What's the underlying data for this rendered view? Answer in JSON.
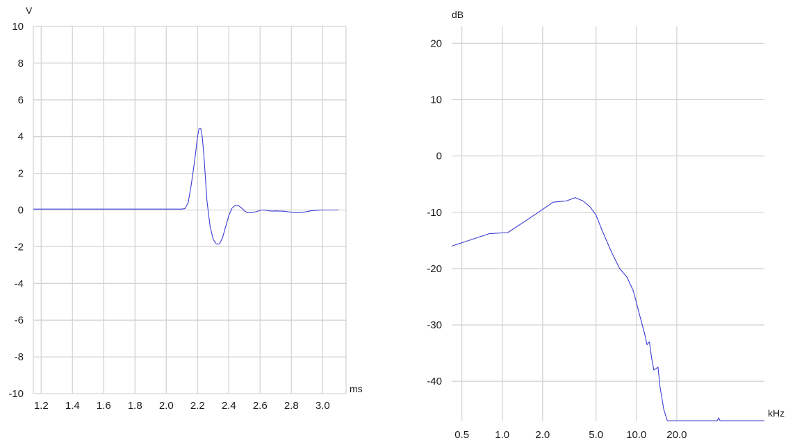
{
  "chart_data": [
    {
      "type": "line",
      "title": "",
      "xlabel": "ms",
      "ylabel": "V",
      "xlim": [
        1.15,
        3.15
      ],
      "ylim": [
        -10,
        10
      ],
      "x_ticks": [
        "1.2",
        "1.4",
        "1.6",
        "1.8",
        "2.0",
        "2.2",
        "2.4",
        "2.6",
        "2.8",
        "3.0"
      ],
      "y_ticks": [
        "10",
        "8",
        "6",
        "4",
        "2",
        "0",
        "-2",
        "-4",
        "-6",
        "-8",
        "-10"
      ],
      "grid": true,
      "color": "#3b3bd6",
      "series": [
        {
          "x": [
            1.15,
            2.1,
            2.12,
            2.14,
            2.16,
            2.18,
            2.2,
            2.21,
            2.22,
            2.23,
            2.24,
            2.25,
            2.26,
            2.28,
            2.3,
            2.32,
            2.34,
            2.36,
            2.38,
            2.4,
            2.42,
            2.44,
            2.46,
            2.48,
            2.5,
            2.52,
            2.54,
            2.56,
            2.58,
            2.6,
            2.62,
            2.64,
            2.66,
            2.68,
            2.7,
            2.72,
            2.74,
            2.76,
            2.8,
            2.84,
            2.88,
            2.92,
            2.96,
            3.0,
            3.05,
            3.1
          ],
          "y": [
            0.05,
            0.05,
            0.08,
            0.4,
            1.4,
            2.6,
            4.0,
            4.45,
            4.45,
            4.0,
            3.0,
            1.8,
            0.5,
            -0.9,
            -1.6,
            -1.85,
            -1.85,
            -1.5,
            -0.9,
            -0.3,
            0.1,
            0.25,
            0.25,
            0.12,
            -0.05,
            -0.15,
            -0.15,
            -0.12,
            -0.08,
            -0.02,
            0.0,
            -0.02,
            -0.05,
            -0.06,
            -0.05,
            -0.06,
            -0.06,
            -0.07,
            -0.12,
            -0.15,
            -0.12,
            -0.05,
            -0.02,
            0.0,
            0.0,
            0.0
          ]
        }
      ]
    },
    {
      "type": "line",
      "title": "",
      "xlabel": "kHz",
      "ylabel": "dB",
      "x_scale": "log",
      "xlim": [
        0.42,
        90
      ],
      "ylim": [
        -47,
        23
      ],
      "x_ticks": [
        "0.5",
        "1.0",
        "2.0",
        "5.0",
        "10.0",
        "20.0"
      ],
      "y_ticks": [
        "20",
        "10",
        "0",
        "-10",
        "-20",
        "-30",
        "-40"
      ],
      "grid": true,
      "color": "#3b3bd6",
      "series": [
        {
          "x": [
            0.42,
            0.8,
            1.1,
            1.5,
            2.0,
            2.4,
            3.0,
            3.5,
            4.0,
            4.5,
            5.0,
            5.5,
            6.5,
            7.5,
            8.5,
            9.5,
            10.5,
            11.5,
            12.0,
            12.5,
            13.0,
            13.5,
            14.5,
            15.0,
            16.0,
            17.0,
            18.0,
            19.0,
            20.0,
            40.0,
            41.0,
            42.0,
            90.0
          ],
          "y": [
            -16.0,
            -13.8,
            -13.6,
            -11.5,
            -9.5,
            -8.2,
            -8.0,
            -7.4,
            -8.0,
            -9.0,
            -10.5,
            -13.0,
            -17.0,
            -20.0,
            -21.5,
            -24.0,
            -28.0,
            -31.5,
            -33.5,
            -33.0,
            -36.0,
            -38.0,
            -37.5,
            -41.0,
            -45.0,
            -47.0,
            -47.0,
            -47.0,
            -47.0,
            -47.0,
            -46.5,
            -47.0,
            -47.0
          ]
        }
      ]
    }
  ]
}
